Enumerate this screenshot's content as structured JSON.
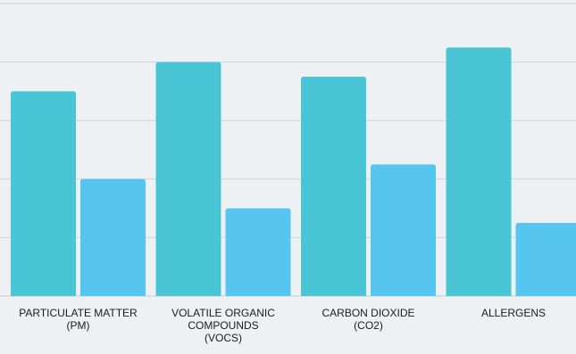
{
  "chart_data": {
    "type": "bar",
    "categories": [
      "PARTICULATE MATTER\n(PM)",
      "VOLATILE ORGANIC\nCOMPOUNDS\n(VOCS)",
      "CARBON DIOXIDE\n(CO2)",
      "ALLERGENS"
    ],
    "series": [
      {
        "values": [
          70,
          80,
          75,
          85
        ],
        "color": "#4ac5d6"
      },
      {
        "values": [
          40,
          30,
          45,
          25
        ],
        "color": "#56c6f0"
      }
    ],
    "ylim": [
      0,
      100
    ],
    "grid": true,
    "title": "",
    "xlabel": "",
    "ylabel": ""
  }
}
